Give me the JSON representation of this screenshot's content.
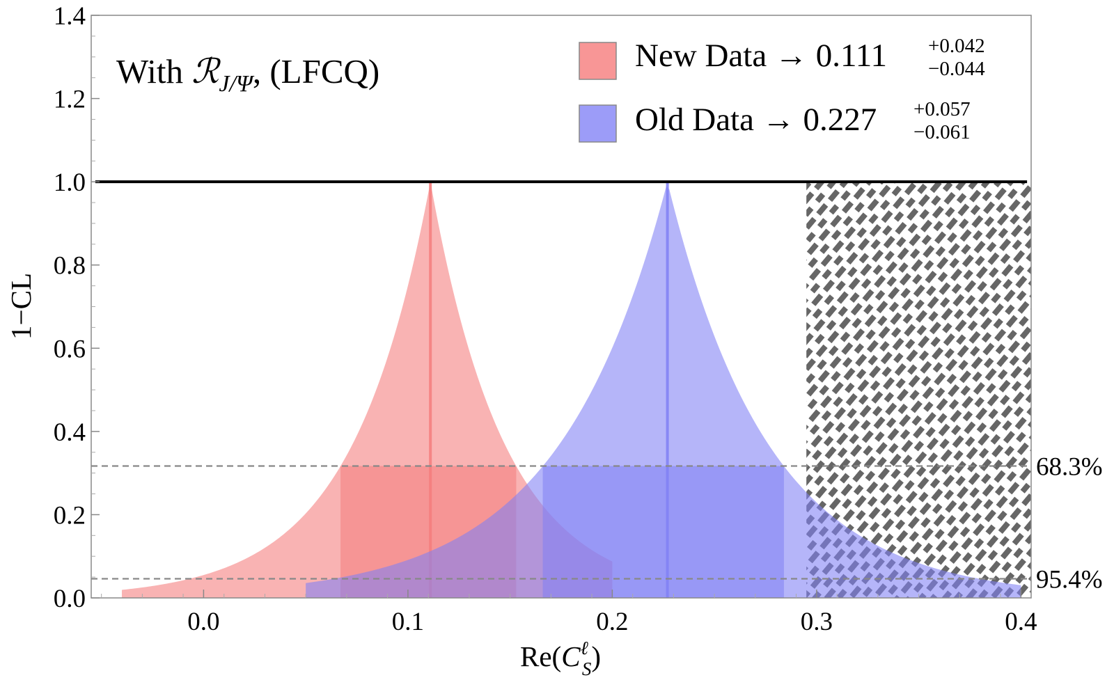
{
  "chart_data": {
    "type": "area",
    "title": "",
    "xlabel_main": "Re(",
    "xlabel_var": "C",
    "xlabel_sup": "ℓ",
    "xlabel_sub": "S",
    "xlabel_close": ")",
    "ylabel": "1−CL",
    "xlim": [
      -0.055,
      0.405
    ],
    "ylim": [
      0.0,
      1.4
    ],
    "x_ticks": [
      0.0,
      0.1,
      0.2,
      0.3,
      0.4
    ],
    "x_tick_labels": [
      "0.0",
      "0.1",
      "0.2",
      "0.3",
      "0.4"
    ],
    "y_ticks": [
      0.0,
      0.2,
      0.4,
      0.6,
      0.8,
      1.0,
      1.2,
      1.4
    ],
    "y_tick_labels": [
      "0.0",
      "0.2",
      "0.4",
      "0.6",
      "0.8",
      "1.0",
      "1.2",
      "1.4"
    ],
    "annotation": {
      "prefix": "With ",
      "symbol": "ℛ",
      "subscript": "J/Ψ",
      "suffix": ", (LFCQ)"
    },
    "reference_line": {
      "y": 1.0
    },
    "confidence_levels": [
      {
        "y": 0.317,
        "label": "68.3%"
      },
      {
        "y": 0.046,
        "label": "95.4%"
      }
    ],
    "excluded_region": {
      "x_from": 0.295,
      "x_to": 0.405,
      "y_to": 1.0,
      "pattern": "hatched"
    },
    "series": [
      {
        "name": "New Data",
        "legend_text": "New Data → 0.111",
        "legend_sup": "+0.042",
        "legend_sub": "−0.044",
        "color": "#f47c7c",
        "central": 0.111,
        "err_plus": 0.042,
        "err_minus": 0.044,
        "x_min": -0.04,
        "x_max": 0.2,
        "interval_1sigma": [
          0.067,
          0.153
        ]
      },
      {
        "name": "Old Data",
        "legend_text": "Old Data → 0.227",
        "legend_sup": "+0.057",
        "legend_sub": "−0.061",
        "color": "#8080f4",
        "central": 0.227,
        "err_plus": 0.057,
        "err_minus": 0.061,
        "x_min": 0.05,
        "x_max": 0.4,
        "interval_1sigma": [
          0.166,
          0.284
        ]
      }
    ]
  }
}
